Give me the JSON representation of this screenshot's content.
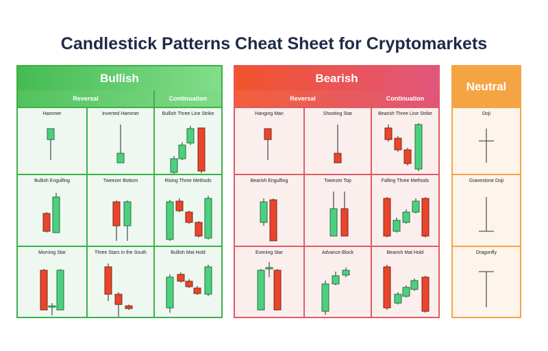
{
  "title": "Candlestick Patterns Cheat Sheet for Cryptomarkets",
  "colors": {
    "bullish": "#45bb52",
    "bearish": "#f2542c",
    "neutral": "#f5a444",
    "candle_up": "#4cd080",
    "candle_down": "#e8452b"
  },
  "bullish": {
    "header": "Bullish",
    "reversal": "Reversal",
    "continuation": "Continuation",
    "patterns": [
      "Hammer",
      "Inverted Hammer",
      "Bullish Three Line Strike",
      "Bullish Engulfing",
      "Tweezer Bottom",
      "Rising Three Methods",
      "Morning Star",
      "Three Stars in the South",
      "Bullish Mat Hold"
    ]
  },
  "bearish": {
    "header": "Bearish",
    "reversal": "Reversal",
    "continuation": "Continuation",
    "patterns": [
      "Hanging Man",
      "Shooting Star",
      "Bearish Three Line Strike",
      "Bearish Engulfing",
      "Tweezer Top",
      "Falling Three Methods",
      "Evening Star",
      "Advance Block",
      "Bearish Mat Hold"
    ]
  },
  "neutral": {
    "header": "Neutral",
    "patterns": [
      "Doji",
      "Gravestone Doji",
      "Dragonfly"
    ]
  }
}
